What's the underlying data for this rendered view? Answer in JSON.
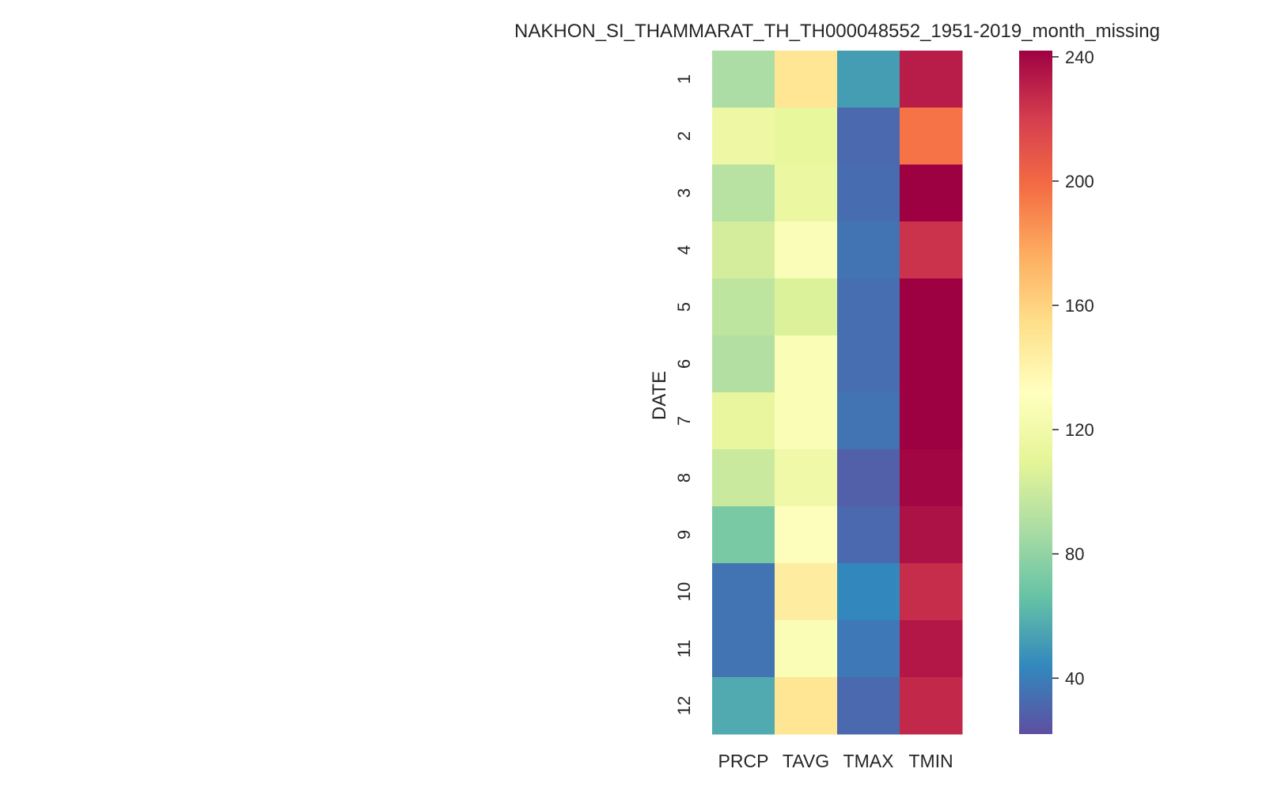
{
  "chart_data": {
    "type": "heatmap",
    "title": "NAKHON_SI_THAMMARAT_TH_TH000048552_1951-2019_month_missing",
    "ylabel": "DATE",
    "xlabel": "",
    "columns": [
      "PRCP",
      "TAVG",
      "TMAX",
      "TMIN"
    ],
    "rows": [
      "1",
      "2",
      "3",
      "4",
      "5",
      "6",
      "7",
      "8",
      "9",
      "10",
      "11",
      "12"
    ],
    "values": [
      [
        88,
        150,
        52,
        232
      ],
      [
        117,
        112,
        32,
        196
      ],
      [
        93,
        115,
        33,
        245
      ],
      [
        103,
        128,
        36,
        224
      ],
      [
        95,
        106,
        34,
        243
      ],
      [
        91,
        127,
        34,
        244
      ],
      [
        113,
        127,
        36,
        250
      ],
      [
        99,
        119,
        28,
        240
      ],
      [
        72,
        130,
        32,
        236
      ],
      [
        36,
        145,
        44,
        226
      ],
      [
        36,
        127,
        38,
        234
      ],
      [
        57,
        150,
        32,
        228
      ]
    ],
    "colorbar": {
      "colormap": "Spectral_r",
      "vmin": 22,
      "vmax": 242,
      "ticks": [
        40,
        80,
        120,
        160,
        200,
        240
      ]
    },
    "grid": false,
    "legend": "colorbar-right"
  }
}
